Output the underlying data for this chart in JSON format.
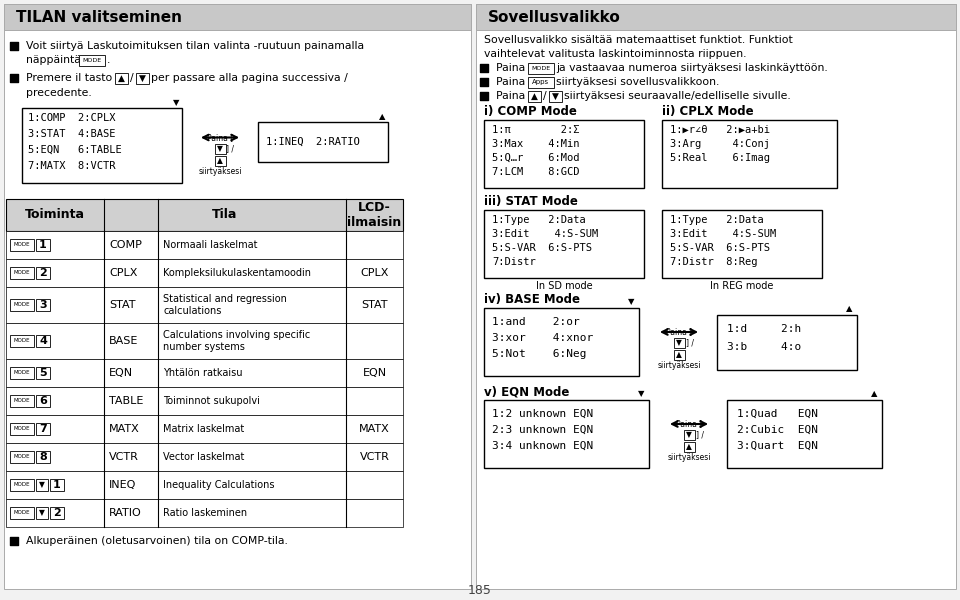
{
  "bg_color": "#f2f2f2",
  "panel_bg": "#ffffff",
  "title_bg": "#c8c8c8",
  "left_title": "TILAN valitseminen",
  "right_title": "Sovellusvalikko",
  "table_rows": [
    {
      "key": "MODE 1",
      "mode": "COMP",
      "desc": "Normaali laskelmat",
      "lcd": ""
    },
    {
      "key": "MODE 2",
      "mode": "CPLX",
      "desc": "Kompleksilukulaskentamoodin",
      "lcd": "CPLX"
    },
    {
      "key": "MODE 3",
      "mode": "STAT",
      "desc": "Statistical and regression\ncalculations",
      "lcd": "STAT"
    },
    {
      "key": "MODE 4",
      "mode": "BASE",
      "desc": "Calculations involving specific\nnumber systems",
      "lcd": ""
    },
    {
      "key": "MODE 5",
      "mode": "EQN",
      "desc": "Yhtälön ratkaisu",
      "lcd": "EQN"
    },
    {
      "key": "MODE 6",
      "mode": "TABLE",
      "desc": "Toiminnot sukupolvi",
      "lcd": ""
    },
    {
      "key": "MODE 7",
      "mode": "MATX",
      "desc": "Matrix laskelmat",
      "lcd": "MATX"
    },
    {
      "key": "MODE 8",
      "mode": "VCTR",
      "desc": "Vector laskelmat",
      "lcd": "VCTR"
    },
    {
      "key": "MODE d 1",
      "mode": "INEQ",
      "desc": "Inequality Calculations",
      "lcd": ""
    },
    {
      "key": "MODE d 2",
      "mode": "RATIO",
      "desc": "Ratio laskeminen",
      "lcd": ""
    }
  ],
  "page_number": "185"
}
